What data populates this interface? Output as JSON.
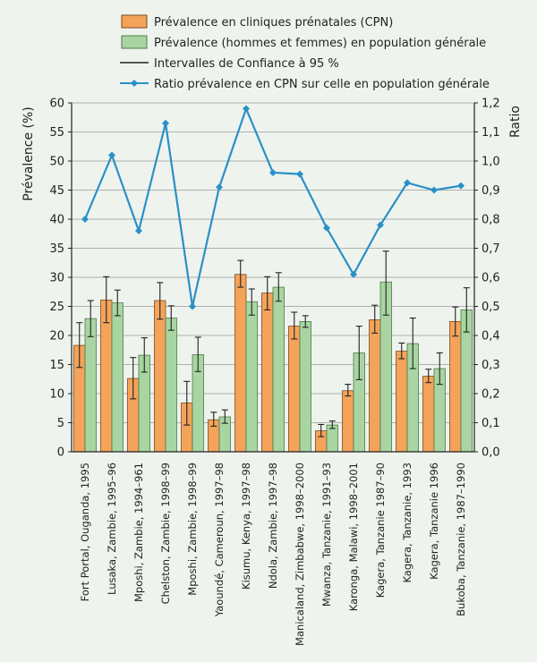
{
  "chart_data": {
    "type": "bar",
    "legend": {
      "position": "top",
      "entries": [
        {
          "label": "Prévalence en cliniques prénatales (CPN)",
          "kind": "bar",
          "color": "#f4a35a"
        },
        {
          "label": "Prévalence (hommes et femmes) en population générale",
          "kind": "bar",
          "color": "#a8d5a2"
        },
        {
          "label": "Intervalles de Confiance à 95 %",
          "kind": "line",
          "color": "#222222"
        },
        {
          "label": "Ratio prévalence en CPN sur celle en population générale",
          "kind": "line-marker",
          "color": "#2a90c8"
        }
      ]
    },
    "ylabel": "Prévalence (%)",
    "y2label": "Ratio",
    "ylim": [
      0,
      60
    ],
    "y_ticks": [
      "0",
      "5",
      "10",
      "15",
      "20",
      "25",
      "30",
      "35",
      "40",
      "45",
      "50",
      "55",
      "60"
    ],
    "y2lim": [
      0,
      1.2
    ],
    "y2_ticks": [
      "0,0",
      "0,1",
      "0,2",
      "0,3",
      "0,4",
      "0,5",
      "0,6",
      "0,7",
      "0,8",
      "0,9",
      "1,0",
      "1,1",
      "1,2"
    ],
    "grid": "horizontal",
    "categories": [
      "Fort Portal, Ouganda, 1995",
      "Lusaka, Zambie, 1995–96",
      "Mposhi, Zambie, 1994–961",
      "Chelston, Zambie, 1998–99",
      "Mposhi, Zambie, 1998–99",
      "Yaoundé, Cameroun, 1997–98",
      "Kisumu, Kenya, 1997–98",
      "Ndola, Zambie, 1997–98",
      "Manicaland, Zimbabwe, 1998–2000",
      "Mwanza, Tanzanie, 1991–93",
      "Karonga, Malawi, 1998–2001",
      "Kagera, Tanzanie 1987–90",
      "Kagera, Tanzanie, 1993",
      "Kagera, Tanzanie 1996",
      "Bukoba, Tanzanie, 1987–1990"
    ],
    "series": [
      {
        "name": "Prévalence en cliniques prénatales (CPN)",
        "color": "#f4a35a",
        "values": [
          18.3,
          26.1,
          12.6,
          26.0,
          8.4,
          5.5,
          30.5,
          27.3,
          21.6,
          3.6,
          10.5,
          22.7,
          17.3,
          13.0,
          22.4
        ],
        "ci": [
          [
            14.5,
            22.2
          ],
          [
            22.2,
            30.1
          ],
          [
            9.1,
            16.2
          ],
          [
            22.8,
            29.1
          ],
          [
            4.6,
            12.1
          ],
          [
            4.4,
            6.8
          ],
          [
            28.3,
            32.9
          ],
          [
            24.4,
            30.1
          ],
          [
            19.4,
            24.0
          ],
          [
            2.6,
            4.7
          ],
          [
            9.6,
            11.6
          ],
          [
            20.4,
            25.2
          ],
          [
            16.0,
            18.7
          ],
          [
            11.9,
            14.2
          ],
          [
            19.9,
            24.9
          ]
        ]
      },
      {
        "name": "Prévalence (hommes et femmes) en population générale",
        "color": "#a8d5a2",
        "values": [
          22.9,
          25.6,
          16.6,
          23.0,
          16.7,
          6.0,
          25.8,
          28.3,
          22.4,
          4.6,
          17.0,
          29.2,
          18.6,
          14.3,
          24.4
        ],
        "ci": [
          [
            19.8,
            26.0
          ],
          [
            23.4,
            27.8
          ],
          [
            13.7,
            19.6
          ],
          [
            20.9,
            25.1
          ],
          [
            13.8,
            19.7
          ],
          [
            4.9,
            7.2
          ],
          [
            23.5,
            28.0
          ],
          [
            25.9,
            30.8
          ],
          [
            21.4,
            23.4
          ],
          [
            4.0,
            5.3
          ],
          [
            12.4,
            21.6
          ],
          [
            23.5,
            34.5
          ],
          [
            14.3,
            23.0
          ],
          [
            11.6,
            17.0
          ],
          [
            20.6,
            28.2
          ]
        ]
      },
      {
        "name": "Ratio prévalence en CPN sur celle en population générale",
        "color": "#2a90c8",
        "axis": "right",
        "values": [
          0.8,
          1.02,
          0.76,
          1.13,
          0.5,
          0.91,
          1.18,
          0.96,
          0.955,
          0.77,
          0.61,
          0.78,
          0.925,
          0.9,
          0.915
        ]
      }
    ]
  }
}
